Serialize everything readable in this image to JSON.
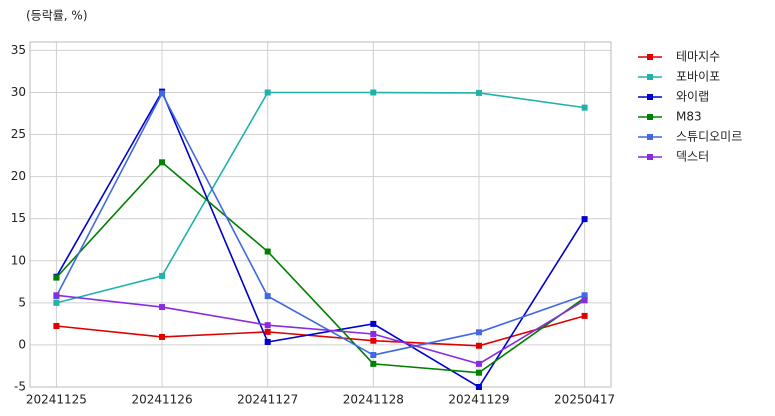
{
  "chart_data": {
    "type": "line",
    "title": "(등락률, %)",
    "categories": [
      "20241125",
      "20241126",
      "20241127",
      "20241128",
      "20241129",
      "20250417"
    ],
    "series": [
      {
        "name": "테마지수",
        "color": "#e00000",
        "values": [
          2.25,
          0.95,
          1.55,
          0.5,
          -0.1,
          3.45
        ]
      },
      {
        "name": "포바이포",
        "color": "#20b2aa",
        "values": [
          5.0,
          8.2,
          30.0,
          30.0,
          29.95,
          28.2
        ]
      },
      {
        "name": "와이랩",
        "color": "#0000cd",
        "values": [
          8.1,
          30.1,
          0.35,
          2.5,
          -5.0,
          14.95
        ]
      },
      {
        "name": "M83",
        "color": "#008000",
        "values": [
          8.0,
          21.7,
          11.1,
          -2.25,
          -3.3,
          5.6
        ]
      },
      {
        "name": "스튜디오미르",
        "color": "#4169e1",
        "values": [
          5.8,
          29.9,
          5.8,
          -1.2,
          1.5,
          5.9
        ]
      },
      {
        "name": "덱스터",
        "color": "#8a2be2",
        "values": [
          5.9,
          4.5,
          2.35,
          1.3,
          -2.25,
          5.3
        ]
      }
    ],
    "ylim": [
      -5,
      36
    ],
    "yticks": [
      -5,
      0,
      5,
      10,
      15,
      20,
      25,
      30,
      35
    ],
    "grid": true,
    "legend": "outside right"
  }
}
